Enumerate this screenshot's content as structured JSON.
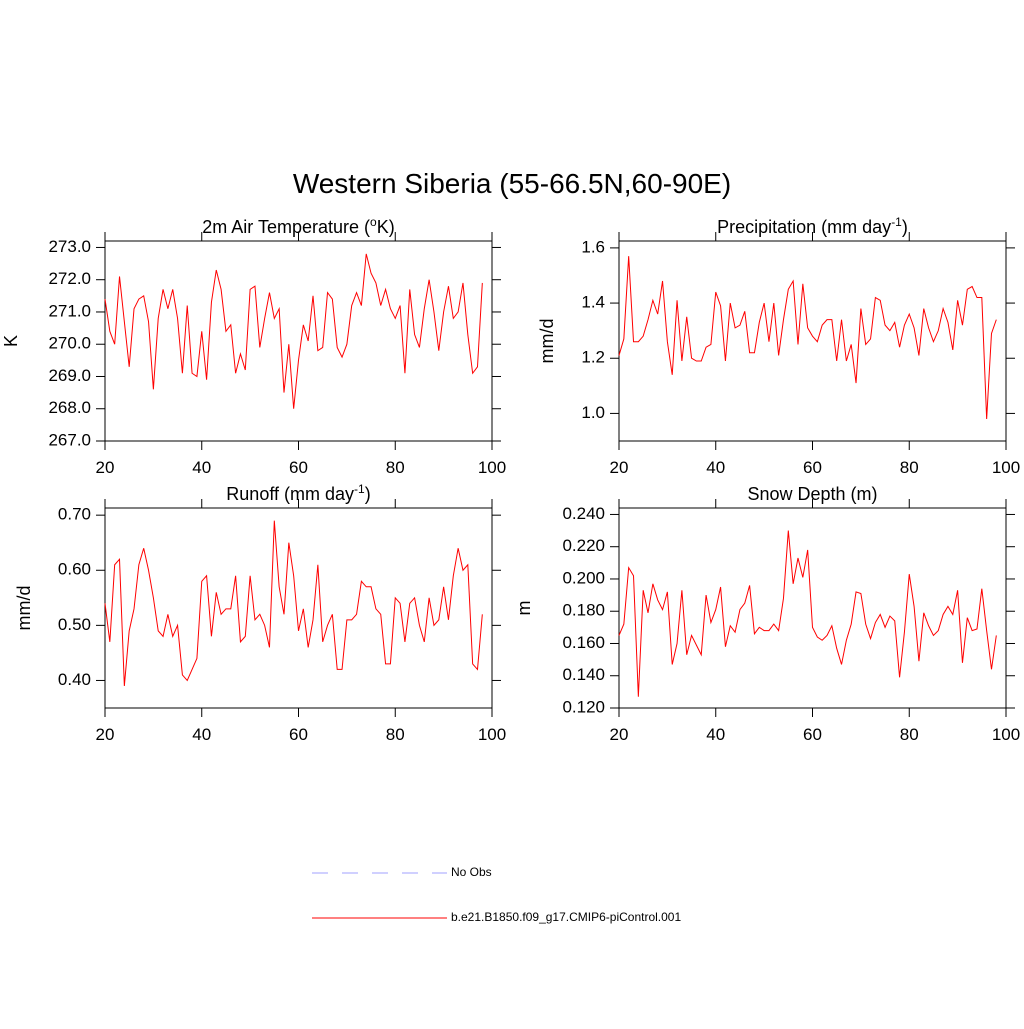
{
  "title": "Western Siberia (55-66.5N,60-90E)",
  "legend": [
    {
      "name": "No Obs",
      "color": "#a0a0ff",
      "dashed": true
    },
    {
      "name": "b.e21.B1850.f09_g17.CMIP6-piControl.001",
      "color": "#ff0000",
      "dashed": false
    }
  ],
  "chart_data": [
    {
      "type": "line",
      "title": [
        "2m Air Temperature (",
        "o",
        "K)"
      ],
      "y_label": "K",
      "xlim": [
        20,
        100
      ],
      "xticks": [
        20,
        40,
        60,
        80,
        100
      ],
      "ylim": [
        267.0,
        273.2
      ],
      "yticks": [
        {
          "value": 267,
          "label": "267.0"
        },
        {
          "value": 268,
          "label": "268.0"
        },
        {
          "value": 269,
          "label": "269.0"
        },
        {
          "value": 270,
          "label": "270.0"
        },
        {
          "value": 271,
          "label": "271.0"
        },
        {
          "value": 272,
          "label": "272.0"
        },
        {
          "value": 273,
          "label": "273.0"
        }
      ],
      "x": [
        20,
        21,
        22,
        23,
        24,
        25,
        26,
        27,
        28,
        29,
        30,
        31,
        32,
        33,
        34,
        35,
        36,
        37,
        38,
        39,
        40,
        41,
        42,
        43,
        44,
        45,
        46,
        47,
        48,
        49,
        50,
        51,
        52,
        53,
        54,
        55,
        56,
        57,
        58,
        59,
        60,
        61,
        62,
        63,
        64,
        65,
        66,
        67,
        68,
        69,
        70,
        71,
        72,
        73,
        74,
        75,
        76,
        77,
        78,
        79,
        80,
        81,
        82,
        83,
        84,
        85,
        86,
        87,
        88,
        89,
        90,
        91,
        92,
        93,
        94,
        95,
        96,
        97,
        98
      ],
      "series": [
        {
          "color": "#ff0000",
          "values": [
            271.4,
            270.4,
            270.0,
            272.1,
            270.7,
            269.3,
            271.1,
            271.4,
            271.5,
            270.7,
            268.6,
            270.8,
            271.7,
            271.1,
            271.7,
            270.8,
            269.1,
            271.2,
            269.1,
            269.0,
            270.4,
            268.9,
            271.3,
            272.3,
            271.7,
            270.4,
            270.6,
            269.1,
            269.7,
            269.2,
            271.7,
            271.8,
            269.9,
            270.8,
            271.6,
            270.8,
            271.1,
            268.5,
            270.0,
            268.0,
            269.5,
            270.6,
            270.1,
            271.5,
            269.8,
            269.9,
            271.6,
            271.4,
            269.9,
            269.6,
            270.0,
            271.2,
            271.6,
            271.2,
            272.8,
            272.2,
            271.9,
            271.2,
            271.7,
            271.1,
            270.8,
            271.2,
            269.1,
            271.7,
            270.3,
            269.9,
            271.1,
            272.0,
            271.0,
            269.8,
            271.0,
            271.8,
            270.8,
            271.0,
            271.9,
            270.3,
            269.1,
            269.3,
            271.9
          ]
        }
      ]
    },
    {
      "type": "line",
      "title": [
        "Precipitation (mm day",
        "-1",
        ")"
      ],
      "y_label": "mm/d",
      "xlim": [
        20,
        100
      ],
      "xticks": [
        20,
        40,
        60,
        80,
        100
      ],
      "ylim": [
        0.9,
        1.625
      ],
      "yticks": [
        {
          "value": 1,
          "label": "1.0"
        },
        1.2,
        1.4,
        1.6
      ],
      "x": [
        20,
        21,
        22,
        23,
        24,
        25,
        26,
        27,
        28,
        29,
        30,
        31,
        32,
        33,
        34,
        35,
        36,
        37,
        38,
        39,
        40,
        41,
        42,
        43,
        44,
        45,
        46,
        47,
        48,
        49,
        50,
        51,
        52,
        53,
        54,
        55,
        56,
        57,
        58,
        59,
        60,
        61,
        62,
        63,
        64,
        65,
        66,
        67,
        68,
        69,
        70,
        71,
        72,
        73,
        74,
        75,
        76,
        77,
        78,
        79,
        80,
        81,
        82,
        83,
        84,
        85,
        86,
        87,
        88,
        89,
        90,
        91,
        92,
        93,
        94,
        95,
        96,
        97,
        98
      ],
      "series": [
        {
          "color": "#ff0000",
          "values": [
            1.21,
            1.27,
            1.57,
            1.26,
            1.26,
            1.28,
            1.34,
            1.41,
            1.36,
            1.48,
            1.26,
            1.14,
            1.41,
            1.19,
            1.35,
            1.2,
            1.19,
            1.19,
            1.24,
            1.25,
            1.44,
            1.39,
            1.19,
            1.4,
            1.31,
            1.32,
            1.37,
            1.22,
            1.22,
            1.33,
            1.4,
            1.26,
            1.4,
            1.21,
            1.34,
            1.45,
            1.48,
            1.25,
            1.47,
            1.31,
            1.28,
            1.26,
            1.32,
            1.34,
            1.34,
            1.19,
            1.34,
            1.19,
            1.25,
            1.11,
            1.38,
            1.25,
            1.27,
            1.42,
            1.41,
            1.32,
            1.3,
            1.33,
            1.24,
            1.32,
            1.36,
            1.31,
            1.21,
            1.38,
            1.31,
            1.26,
            1.3,
            1.38,
            1.33,
            1.23,
            1.41,
            1.32,
            1.45,
            1.46,
            1.42,
            1.42,
            0.98,
            1.29,
            1.34
          ]
        }
      ]
    },
    {
      "type": "line",
      "title": [
        "Runoff (mm day",
        "-1",
        ")"
      ],
      "y_label": "mm/d",
      "xlim": [
        20,
        100
      ],
      "xticks": [
        20,
        40,
        60,
        80,
        100
      ],
      "ylim": [
        0.35,
        0.713
      ],
      "yticks": [
        {
          "value": 0.4,
          "label": "0.40"
        },
        {
          "value": 0.5,
          "label": "0.50"
        },
        {
          "value": 0.6,
          "label": "0.60"
        },
        {
          "value": 0.7,
          "label": "0.70"
        }
      ],
      "x": [
        20,
        21,
        22,
        23,
        24,
        25,
        26,
        27,
        28,
        29,
        30,
        31,
        32,
        33,
        34,
        35,
        36,
        37,
        38,
        39,
        40,
        41,
        42,
        43,
        44,
        45,
        46,
        47,
        48,
        49,
        50,
        51,
        52,
        53,
        54,
        55,
        56,
        57,
        58,
        59,
        60,
        61,
        62,
        63,
        64,
        65,
        66,
        67,
        68,
        69,
        70,
        71,
        72,
        73,
        74,
        75,
        76,
        77,
        78,
        79,
        80,
        81,
        82,
        83,
        84,
        85,
        86,
        87,
        88,
        89,
        90,
        91,
        92,
        93,
        94,
        95,
        96,
        97,
        98
      ],
      "series": [
        {
          "color": "#ff0000",
          "values": [
            0.54,
            0.47,
            0.61,
            0.62,
            0.39,
            0.49,
            0.53,
            0.61,
            0.64,
            0.6,
            0.55,
            0.49,
            0.48,
            0.52,
            0.48,
            0.5,
            0.41,
            0.4,
            0.42,
            0.44,
            0.58,
            0.59,
            0.48,
            0.56,
            0.52,
            0.53,
            0.53,
            0.59,
            0.47,
            0.48,
            0.59,
            0.51,
            0.52,
            0.5,
            0.46,
            0.69,
            0.57,
            0.52,
            0.65,
            0.59,
            0.49,
            0.53,
            0.46,
            0.51,
            0.61,
            0.47,
            0.5,
            0.52,
            0.42,
            0.42,
            0.51,
            0.51,
            0.52,
            0.58,
            0.57,
            0.57,
            0.53,
            0.52,
            0.43,
            0.43,
            0.55,
            0.54,
            0.47,
            0.54,
            0.55,
            0.5,
            0.47,
            0.55,
            0.5,
            0.51,
            0.57,
            0.51,
            0.59,
            0.64,
            0.6,
            0.61,
            0.43,
            0.42,
            0.52
          ]
        }
      ]
    },
    {
      "type": "line",
      "title": [
        "Snow Depth (m)"
      ],
      "y_label": "m",
      "xlim": [
        20,
        100
      ],
      "xticks": [
        20,
        40,
        60,
        80,
        100
      ],
      "ylim": [
        0.12,
        0.244
      ],
      "yticks": [
        {
          "value": 0.12,
          "label": "0.120"
        },
        {
          "value": 0.14,
          "label": "0.140"
        },
        {
          "value": 0.16,
          "label": "0.160"
        },
        {
          "value": 0.18,
          "label": "0.180"
        },
        {
          "value": 0.2,
          "label": "0.200"
        },
        {
          "value": 0.22,
          "label": "0.220"
        },
        {
          "value": 0.24,
          "label": "0.240"
        }
      ],
      "x": [
        20,
        21,
        22,
        23,
        24,
        25,
        26,
        27,
        28,
        29,
        30,
        31,
        32,
        33,
        34,
        35,
        36,
        37,
        38,
        39,
        40,
        41,
        42,
        43,
        44,
        45,
        46,
        47,
        48,
        49,
        50,
        51,
        52,
        53,
        54,
        55,
        56,
        57,
        58,
        59,
        60,
        61,
        62,
        63,
        64,
        65,
        66,
        67,
        68,
        69,
        70,
        71,
        72,
        73,
        74,
        75,
        76,
        77,
        78,
        79,
        80,
        81,
        82,
        83,
        84,
        85,
        86,
        87,
        88,
        89,
        90,
        91,
        92,
        93,
        94,
        95,
        96,
        97,
        98
      ],
      "series": [
        {
          "color": "#ff0000",
          "values": [
            0.165,
            0.172,
            0.207,
            0.202,
            0.127,
            0.193,
            0.179,
            0.197,
            0.187,
            0.181,
            0.192,
            0.147,
            0.16,
            0.193,
            0.153,
            0.165,
            0.159,
            0.153,
            0.19,
            0.173,
            0.181,
            0.195,
            0.158,
            0.171,
            0.167,
            0.181,
            0.185,
            0.196,
            0.166,
            0.17,
            0.168,
            0.168,
            0.172,
            0.168,
            0.188,
            0.23,
            0.197,
            0.213,
            0.201,
            0.218,
            0.17,
            0.164,
            0.162,
            0.165,
            0.171,
            0.157,
            0.147,
            0.162,
            0.172,
            0.192,
            0.191,
            0.172,
            0.163,
            0.173,
            0.178,
            0.17,
            0.177,
            0.174,
            0.139,
            0.167,
            0.203,
            0.183,
            0.149,
            0.179,
            0.171,
            0.165,
            0.168,
            0.178,
            0.183,
            0.178,
            0.193,
            0.148,
            0.176,
            0.168,
            0.169,
            0.194,
            0.168,
            0.144,
            0.165
          ]
        }
      ]
    }
  ]
}
